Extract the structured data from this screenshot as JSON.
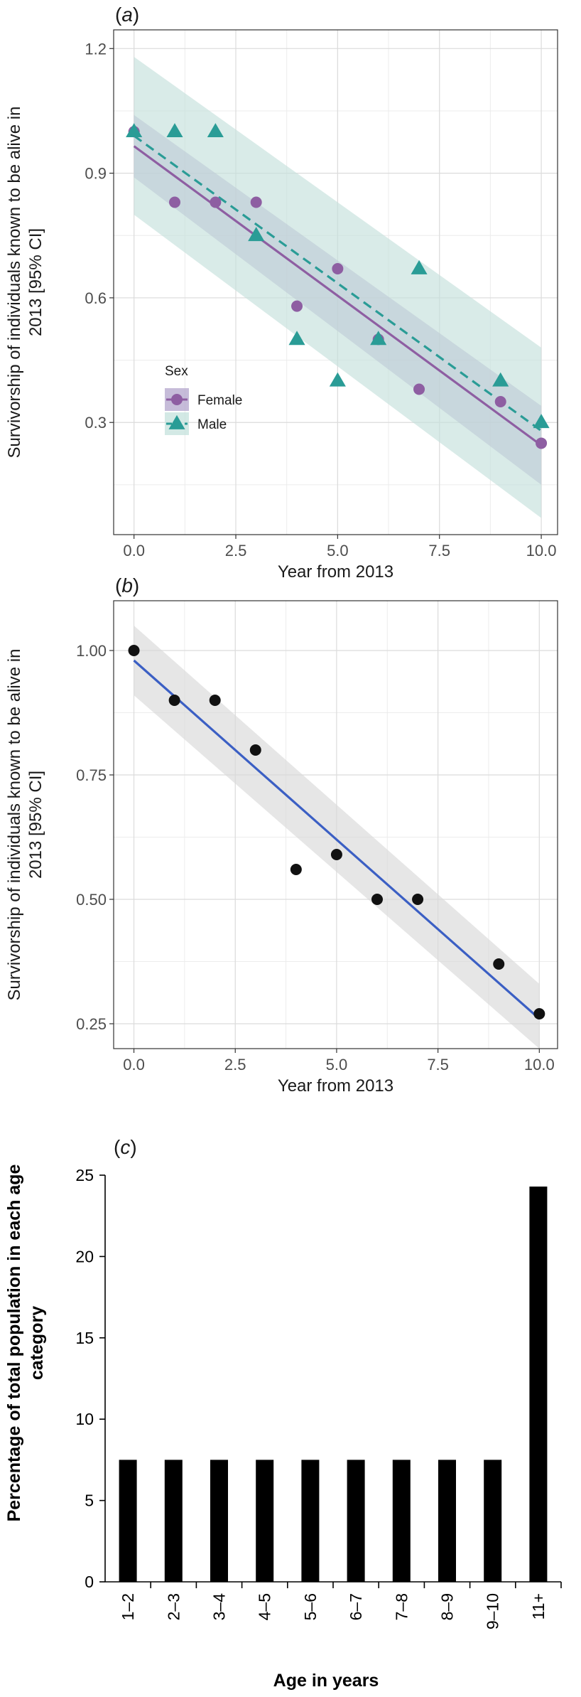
{
  "chart_data": [
    {
      "type": "scatter",
      "panel_label": "a",
      "xlabel": "Year from 2013",
      "ylabel": "Survivorship of individuals known to be alive in 2013 [95% CI]",
      "xlim": [
        -0.5,
        10.4
      ],
      "ylim": [
        0.03,
        1.245
      ],
      "xticks": [
        "0.0",
        "2.5",
        "5.0",
        "7.5",
        "10.0"
      ],
      "yticks": [
        "0.3",
        "0.6",
        "0.9",
        "1.2"
      ],
      "grid": true,
      "legend": {
        "title": "Sex",
        "position": "bottom-left",
        "entries": [
          "Female",
          "Male"
        ]
      },
      "series": [
        {
          "name": "Female",
          "marker": "circle",
          "color": "#8e5ea2",
          "x": [
            0,
            1,
            2,
            3,
            4,
            5,
            6,
            7,
            9,
            10
          ],
          "y": [
            1.0,
            0.83,
            0.83,
            0.83,
            0.58,
            0.67,
            0.5,
            0.38,
            0.35,
            0.25
          ],
          "fit": {
            "linestyle": "solid",
            "x": [
              0,
              10
            ],
            "y": [
              0.965,
              0.245
            ]
          },
          "ci": {
            "x": [
              0,
              10
            ],
            "lower": [
              0.89,
              0.15
            ],
            "upper": [
              1.04,
              0.34
            ],
            "fill": "#b3a6cc"
          }
        },
        {
          "name": "Male",
          "marker": "triangle",
          "color": "#2a9c96",
          "x": [
            0,
            1,
            2,
            3,
            4,
            5,
            6,
            7,
            9,
            10
          ],
          "y": [
            1.0,
            1.0,
            1.0,
            0.75,
            0.5,
            0.4,
            0.5,
            0.67,
            0.4,
            0.3
          ],
          "fit": {
            "linestyle": "dashed",
            "x": [
              0,
              10
            ],
            "y": [
              0.99,
              0.28
            ]
          },
          "ci": {
            "x": [
              0,
              10
            ],
            "lower": [
              0.8,
              0.07
            ],
            "upper": [
              1.18,
              0.48
            ],
            "fill": "#c4e1dc"
          }
        }
      ]
    },
    {
      "type": "scatter",
      "panel_label": "b",
      "xlabel": "Year from 2013",
      "ylabel": "Survivorship of individuals known to be alive in 2013 [95% CI]",
      "xlim": [
        -0.5,
        10.45
      ],
      "ylim": [
        0.2,
        1.1
      ],
      "xticks": [
        "0.0",
        "2.5",
        "5.0",
        "7.5",
        "10.0"
      ],
      "yticks": [
        "0.25",
        "0.50",
        "0.75",
        "1.00"
      ],
      "grid": true,
      "series": [
        {
          "marker": "circle",
          "color": "#111111",
          "x": [
            0,
            1,
            2,
            3,
            4,
            5,
            6,
            7,
            9,
            10
          ],
          "y": [
            1.0,
            0.9,
            0.9,
            0.8,
            0.56,
            0.59,
            0.5,
            0.5,
            0.37,
            0.27
          ],
          "fit": {
            "linestyle": "solid",
            "color": "#3b5fc4",
            "x": [
              0,
              10
            ],
            "y": [
              0.98,
              0.26
            ]
          },
          "ci": {
            "x": [
              0,
              10
            ],
            "lower": [
              0.91,
              0.2
            ],
            "upper": [
              1.05,
              0.33
            ],
            "fill": "#d9d9d9"
          }
        }
      ]
    },
    {
      "type": "bar",
      "panel_label": "c",
      "xlabel": "Age in years",
      "ylabel": "Percentage of total population in each age category",
      "categories": [
        "1–2",
        "2–3",
        "3–4",
        "4–5",
        "5–6",
        "6–7",
        "7–8",
        "8–9",
        "9–10",
        "11+"
      ],
      "values": [
        7.5,
        7.5,
        7.5,
        7.5,
        7.5,
        7.5,
        7.5,
        7.5,
        7.5,
        24.3
      ],
      "ylim": [
        0,
        25
      ],
      "yticks": [
        "0",
        "5",
        "10",
        "15",
        "20",
        "25"
      ],
      "grid": false,
      "color": "#000000"
    }
  ]
}
